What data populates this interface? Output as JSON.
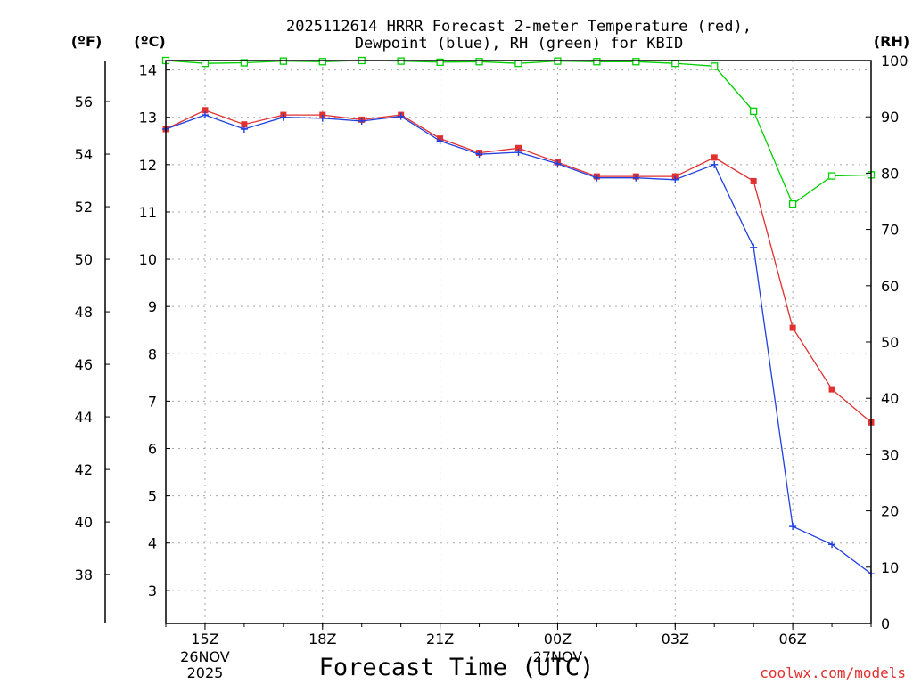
{
  "chart_data": {
    "type": "line",
    "title": "2025112614 HRRR Forecast 2-meter Temperature (red), Dewpoint (blue), RH (green) for KBID",
    "title_lines": [
      "2025112614 HRRR Forecast 2-meter Temperature (red),",
      "Dewpoint (blue), RH (green) for KBID"
    ],
    "xlabel": "Forecast Time (UTC)",
    "credit": "coolwx.com/models",
    "axes": {
      "celsius": {
        "label": "(ºC)",
        "range": [
          2.3,
          14.2
        ],
        "ticks": [
          3,
          4,
          5,
          6,
          7,
          8,
          9,
          10,
          11,
          12,
          13,
          14
        ]
      },
      "fahrenheit": {
        "label": "(ºF)",
        "ticks": [
          38,
          40,
          42,
          44,
          46,
          48,
          50,
          52,
          54,
          56
        ]
      },
      "rh": {
        "label": "(RH)",
        "range": [
          0,
          100
        ],
        "ticks": [
          0,
          10,
          20,
          30,
          40,
          50,
          60,
          70,
          80,
          90,
          100
        ]
      }
    },
    "x": {
      "range_hours": [
        14,
        32
      ],
      "ticks": [
        {
          "hour": 15,
          "label": "15Z",
          "sub": [
            "26NOV",
            "2025"
          ]
        },
        {
          "hour": 18,
          "label": "18Z",
          "sub": []
        },
        {
          "hour": 21,
          "label": "21Z",
          "sub": []
        },
        {
          "hour": 24,
          "label": "00Z",
          "sub": [
            "27NOV"
          ]
        },
        {
          "hour": 27,
          "label": "03Z",
          "sub": []
        },
        {
          "hour": 30,
          "label": "06Z",
          "sub": []
        }
      ]
    },
    "hours": [
      14,
      15,
      16,
      17,
      18,
      19,
      20,
      21,
      22,
      23,
      24,
      25,
      26,
      27,
      28,
      29,
      30,
      31,
      32
    ],
    "series": [
      {
        "name": "Temperature",
        "unit": "C",
        "color": "#e03030",
        "marker": "square-filled",
        "values": [
          12.75,
          13.15,
          12.85,
          13.05,
          13.05,
          12.95,
          13.05,
          12.55,
          12.25,
          12.35,
          12.05,
          11.75,
          11.75,
          11.75,
          12.15,
          11.65,
          8.55,
          7.25,
          6.55
        ]
      },
      {
        "name": "Dewpoint",
        "unit": "C",
        "color": "#2040e0",
        "marker": "plus",
        "values": [
          12.75,
          13.05,
          12.75,
          13.0,
          12.98,
          12.92,
          13.02,
          12.5,
          12.22,
          12.26,
          12.02,
          11.72,
          11.72,
          11.68,
          12.0,
          10.25,
          4.35,
          3.97,
          3.35
        ]
      },
      {
        "name": "RH",
        "unit": "%",
        "color": "#00d000",
        "marker": "square-open",
        "values": [
          100,
          99.5,
          99.6,
          99.9,
          99.8,
          100,
          99.9,
          99.7,
          99.8,
          99.5,
          99.9,
          99.8,
          99.8,
          99.5,
          99.0,
          91.0,
          74.5,
          79.5,
          79.7
        ]
      }
    ]
  }
}
